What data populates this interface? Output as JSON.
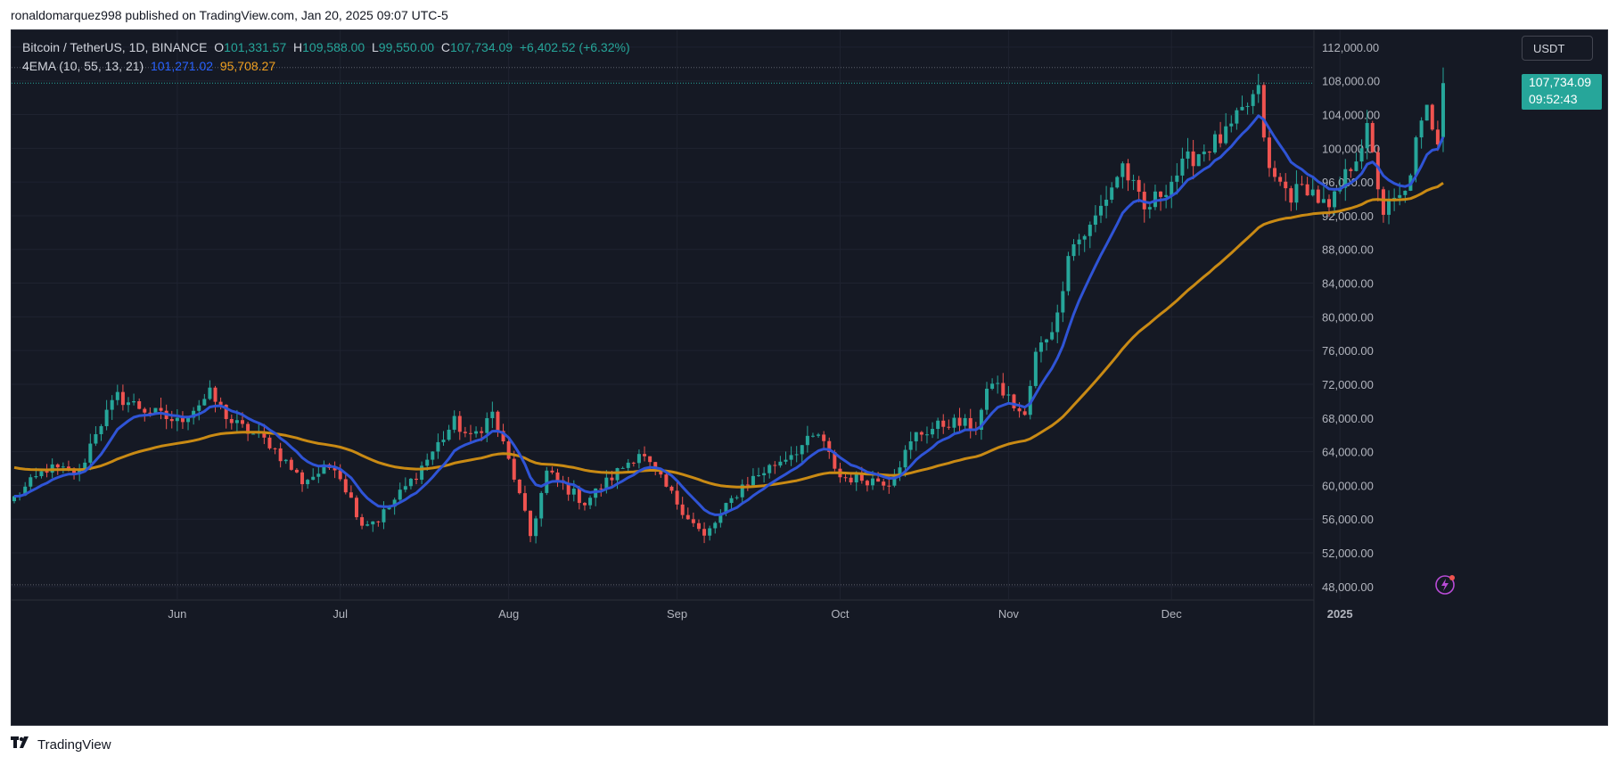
{
  "publish_line": "ronaldomarquez998 published on TradingView.com, Jan 20, 2025 09:07 UTC-5",
  "legend": {
    "symbol": "Bitcoin / TetherUS, 1D, BINANCE",
    "o_label": "O",
    "o_value": "101,331.57",
    "h_label": "H",
    "h_value": "109,588.00",
    "l_label": "L",
    "l_value": "99,550.00",
    "c_label": "C",
    "c_value": "107,734.09",
    "change": "+6,402.52 (+6.32%)",
    "indicator": "4EMA (10, 55, 13, 21)",
    "ema_fast_value": "101,271.02",
    "ema_slow_value": "95,708.27"
  },
  "currency_button": "USDT",
  "last_price_tag": {
    "price": "107,734.09",
    "countdown": "09:52:43"
  },
  "footer": {
    "brand": "TradingView"
  },
  "colors": {
    "up": "#26a69a",
    "down": "#ef5350",
    "ema_fast": "#2f54d6",
    "ema_slow": "#c98a14",
    "background": "#151924"
  },
  "icons": {
    "footer_logo": "tradingview-logo-icon",
    "alert": "flash-icon"
  },
  "chart_data": {
    "type": "candlestick",
    "title": "Bitcoin / TetherUS, 1D, BINANCE",
    "xlabel": "",
    "ylabel": "",
    "ylim": [
      46500,
      114000
    ],
    "x_tick_labels": [
      "Jun",
      "Jul",
      "Aug",
      "Sep",
      "Oct",
      "Nov",
      "Dec",
      "2025"
    ],
    "x_tick_dates": [
      "2024-06-01",
      "2024-07-01",
      "2024-08-01",
      "2024-09-01",
      "2024-10-01",
      "2024-11-01",
      "2024-12-01",
      "2025-01-01"
    ],
    "y_ticks": [
      48000,
      52000,
      56000,
      60000,
      64000,
      68000,
      72000,
      76000,
      80000,
      84000,
      88000,
      92000,
      96000,
      100000,
      104000,
      108000,
      112000
    ],
    "y_tick_labels": [
      "48,000.00",
      "52,000.00",
      "56,000.00",
      "60,000.00",
      "64,000.00",
      "68,000.00",
      "72,000.00",
      "76,000.00",
      "80,000.00",
      "84,000.00",
      "88,000.00",
      "92,000.00",
      "96,000.00",
      "100,000.00",
      "104,000.00",
      "108,000.00",
      "112,000.00"
    ],
    "grid": true,
    "start_date": "2024-05-02",
    "end_date": "2025-01-20",
    "anchors": [
      [
        "2024-05-02",
        58500
      ],
      [
        "2024-05-08",
        62000
      ],
      [
        "2024-05-14",
        61500
      ],
      [
        "2024-05-17",
        66500
      ],
      [
        "2024-05-21",
        70500
      ],
      [
        "2024-05-26",
        69000
      ],
      [
        "2024-06-01",
        67500
      ],
      [
        "2024-06-07",
        70800
      ],
      [
        "2024-06-11",
        67500
      ],
      [
        "2024-06-18",
        65000
      ],
      [
        "2024-06-24",
        60500
      ],
      [
        "2024-06-30",
        62500
      ],
      [
        "2024-07-05",
        55500
      ],
      [
        "2024-07-08",
        56000
      ],
      [
        "2024-07-14",
        60500
      ],
      [
        "2024-07-22",
        67500
      ],
      [
        "2024-07-25",
        65500
      ],
      [
        "2024-07-29",
        68500
      ],
      [
        "2024-08-02",
        61000
      ],
      [
        "2024-08-05",
        54000
      ],
      [
        "2024-08-08",
        61500
      ],
      [
        "2024-08-15",
        58000
      ],
      [
        "2024-08-25",
        64000
      ],
      [
        "2024-09-01",
        58000
      ],
      [
        "2024-09-06",
        53800
      ],
      [
        "2024-09-13",
        60000
      ],
      [
        "2024-09-20",
        63000
      ],
      [
        "2024-09-27",
        66000
      ],
      [
        "2024-10-01",
        61000
      ],
      [
        "2024-10-10",
        60500
      ],
      [
        "2024-10-15",
        66000
      ],
      [
        "2024-10-21",
        67500
      ],
      [
        "2024-10-26",
        67000
      ],
      [
        "2024-10-29",
        72500
      ],
      [
        "2024-11-04",
        68000
      ],
      [
        "2024-11-06",
        75500
      ],
      [
        "2024-11-10",
        80000
      ],
      [
        "2024-11-12",
        88000
      ],
      [
        "2024-11-16",
        90500
      ],
      [
        "2024-11-22",
        98000
      ],
      [
        "2024-11-26",
        92500
      ],
      [
        "2024-12-04",
        98500
      ],
      [
        "2024-12-06",
        99500
      ],
      [
        "2024-12-11",
        101500
      ],
      [
        "2024-12-16",
        106000
      ],
      [
        "2024-12-17",
        106500
      ],
      [
        "2024-12-19",
        97000
      ],
      [
        "2024-12-23",
        94500
      ],
      [
        "2024-12-26",
        95500
      ],
      [
        "2024-12-30",
        92500
      ],
      [
        "2025-01-03",
        98000
      ],
      [
        "2025-01-06",
        102000
      ],
      [
        "2025-01-09",
        92500
      ],
      [
        "2025-01-13",
        94500
      ],
      [
        "2025-01-15",
        100500
      ],
      [
        "2025-01-17",
        104500
      ],
      [
        "2025-01-19",
        101300
      ],
      [
        "2025-01-20",
        107734
      ]
    ],
    "series": [
      {
        "name": "EMA 10",
        "color": "#2f54d6",
        "last_value": 101271.02
      },
      {
        "name": "EMA 55",
        "color": "#c98a14",
        "last_value": 95708.27
      }
    ],
    "last_candle": {
      "open": 101331.57,
      "high": 109588.0,
      "low": 99550.0,
      "close": 107734.09
    }
  }
}
